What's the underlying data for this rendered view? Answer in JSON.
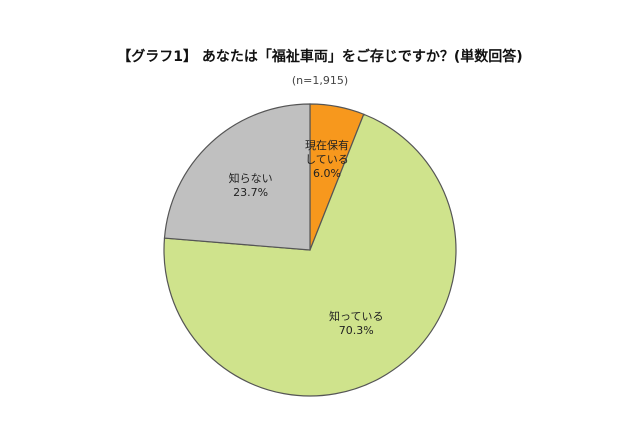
{
  "chart_data": {
    "type": "pie",
    "title": "【グラフ1】 あなたは「福祉車両」をご存じですか？(単数回答)",
    "subtitle": "(n=1,915)",
    "categories": [
      "現在保有している",
      "知っている",
      "知らない"
    ],
    "values": [
      6.0,
      70.3,
      23.7
    ],
    "value_labels": [
      "6.0%",
      "70.3%",
      "23.7%"
    ],
    "colors": [
      "#f7981d",
      "#cfe38c",
      "#c0c0c0"
    ]
  }
}
